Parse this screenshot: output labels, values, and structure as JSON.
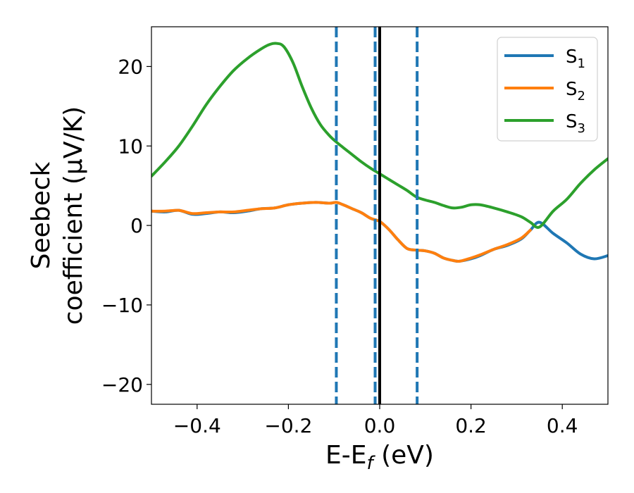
{
  "chart_data": {
    "type": "line",
    "xlabel": {
      "base": "E-E",
      "sub": "f",
      "suffix": " (eV)"
    },
    "ylabel": {
      "line1": "Seebeck",
      "line2": "coefficient  (μV/K)"
    },
    "xlim": [
      -0.5,
      0.5
    ],
    "ylim": [
      -22.5,
      25
    ],
    "x_ticks": [
      -0.4,
      -0.2,
      0.0,
      0.2,
      0.4
    ],
    "x_tick_labels": [
      "−0.4",
      "−0.2",
      "0.0",
      "0.2",
      "0.4"
    ],
    "y_ticks": [
      -20,
      -10,
      0,
      10,
      20
    ],
    "y_tick_labels": [
      "−20",
      "−10",
      "0",
      "10",
      "20"
    ],
    "grid": false,
    "legend_position": "top-right",
    "vertical_lines": [
      {
        "x": -0.095,
        "style": "dashed",
        "color": "#1f77b4"
      },
      {
        "x": -0.01,
        "style": "dashed",
        "color": "#1f77b4"
      },
      {
        "x": 0.0,
        "style": "solid",
        "color": "#000000"
      },
      {
        "x": 0.082,
        "style": "dashed",
        "color": "#1f77b4"
      }
    ],
    "series": [
      {
        "name": "S",
        "name_sub": "1",
        "color": "#1f77b4",
        "x": [
          -0.5,
          -0.47,
          -0.44,
          -0.41,
          -0.38,
          -0.35,
          -0.32,
          -0.29,
          -0.26,
          -0.23,
          -0.2,
          -0.17,
          -0.14,
          -0.11,
          -0.095,
          -0.08,
          -0.06,
          -0.04,
          -0.02,
          0.0,
          0.02,
          0.04,
          0.06,
          0.08,
          0.1,
          0.12,
          0.14,
          0.16,
          0.175,
          0.2,
          0.22,
          0.25,
          0.28,
          0.31,
          0.33,
          0.35,
          0.38,
          0.41,
          0.44,
          0.47,
          0.5
        ],
        "y": [
          1.8,
          1.7,
          1.9,
          1.4,
          1.5,
          1.7,
          1.6,
          1.8,
          2.1,
          2.2,
          2.6,
          2.8,
          2.9,
          2.8,
          2.9,
          2.6,
          2.1,
          1.6,
          0.9,
          0.5,
          -0.5,
          -1.8,
          -2.9,
          -3.1,
          -3.2,
          -3.5,
          -4.1,
          -4.4,
          -4.5,
          -4.2,
          -3.8,
          -3.0,
          -2.5,
          -1.7,
          -0.6,
          0.4,
          -1.0,
          -2.2,
          -3.6,
          -4.2,
          -3.8
        ]
      },
      {
        "name": "S",
        "name_sub": "2",
        "color": "#ff7f0e",
        "x": [
          -0.5,
          -0.47,
          -0.44,
          -0.41,
          -0.38,
          -0.35,
          -0.32,
          -0.29,
          -0.26,
          -0.23,
          -0.2,
          -0.17,
          -0.14,
          -0.11,
          -0.095,
          -0.08,
          -0.06,
          -0.04,
          -0.02,
          0.0,
          0.02,
          0.04,
          0.06,
          0.08,
          0.1,
          0.12,
          0.14,
          0.16,
          0.175,
          0.2,
          0.22,
          0.25,
          0.28,
          0.31,
          0.33
        ],
        "y": [
          1.8,
          1.8,
          1.9,
          1.5,
          1.6,
          1.7,
          1.7,
          1.9,
          2.1,
          2.2,
          2.6,
          2.8,
          2.9,
          2.8,
          2.9,
          2.6,
          2.1,
          1.6,
          0.9,
          0.5,
          -0.5,
          -1.8,
          -2.9,
          -3.1,
          -3.2,
          -3.5,
          -4.1,
          -4.4,
          -4.5,
          -4.1,
          -3.7,
          -3.0,
          -2.4,
          -1.6,
          -0.6
        ]
      },
      {
        "name": "S",
        "name_sub": "3",
        "color": "#2ca02c",
        "x": [
          -0.5,
          -0.47,
          -0.44,
          -0.41,
          -0.38,
          -0.35,
          -0.32,
          -0.29,
          -0.26,
          -0.24,
          -0.225,
          -0.21,
          -0.19,
          -0.17,
          -0.15,
          -0.13,
          -0.11,
          -0.095,
          -0.08,
          -0.06,
          -0.04,
          -0.02,
          0.0,
          0.02,
          0.04,
          0.06,
          0.08,
          0.1,
          0.12,
          0.14,
          0.16,
          0.18,
          0.2,
          0.22,
          0.25,
          0.28,
          0.31,
          0.33,
          0.35,
          0.38,
          0.41,
          0.44,
          0.47,
          0.5
        ],
        "y": [
          6.2,
          8.0,
          10.0,
          12.5,
          15.2,
          17.5,
          19.5,
          21.0,
          22.2,
          22.8,
          22.9,
          22.5,
          20.5,
          17.5,
          14.8,
          12.7,
          11.3,
          10.5,
          9.8,
          8.9,
          8.0,
          7.2,
          6.5,
          5.8,
          5.1,
          4.4,
          3.6,
          3.2,
          2.9,
          2.5,
          2.2,
          2.3,
          2.6,
          2.6,
          2.2,
          1.7,
          1.1,
          0.4,
          -0.2,
          1.8,
          3.3,
          5.3,
          7.0,
          8.4
        ]
      }
    ]
  }
}
